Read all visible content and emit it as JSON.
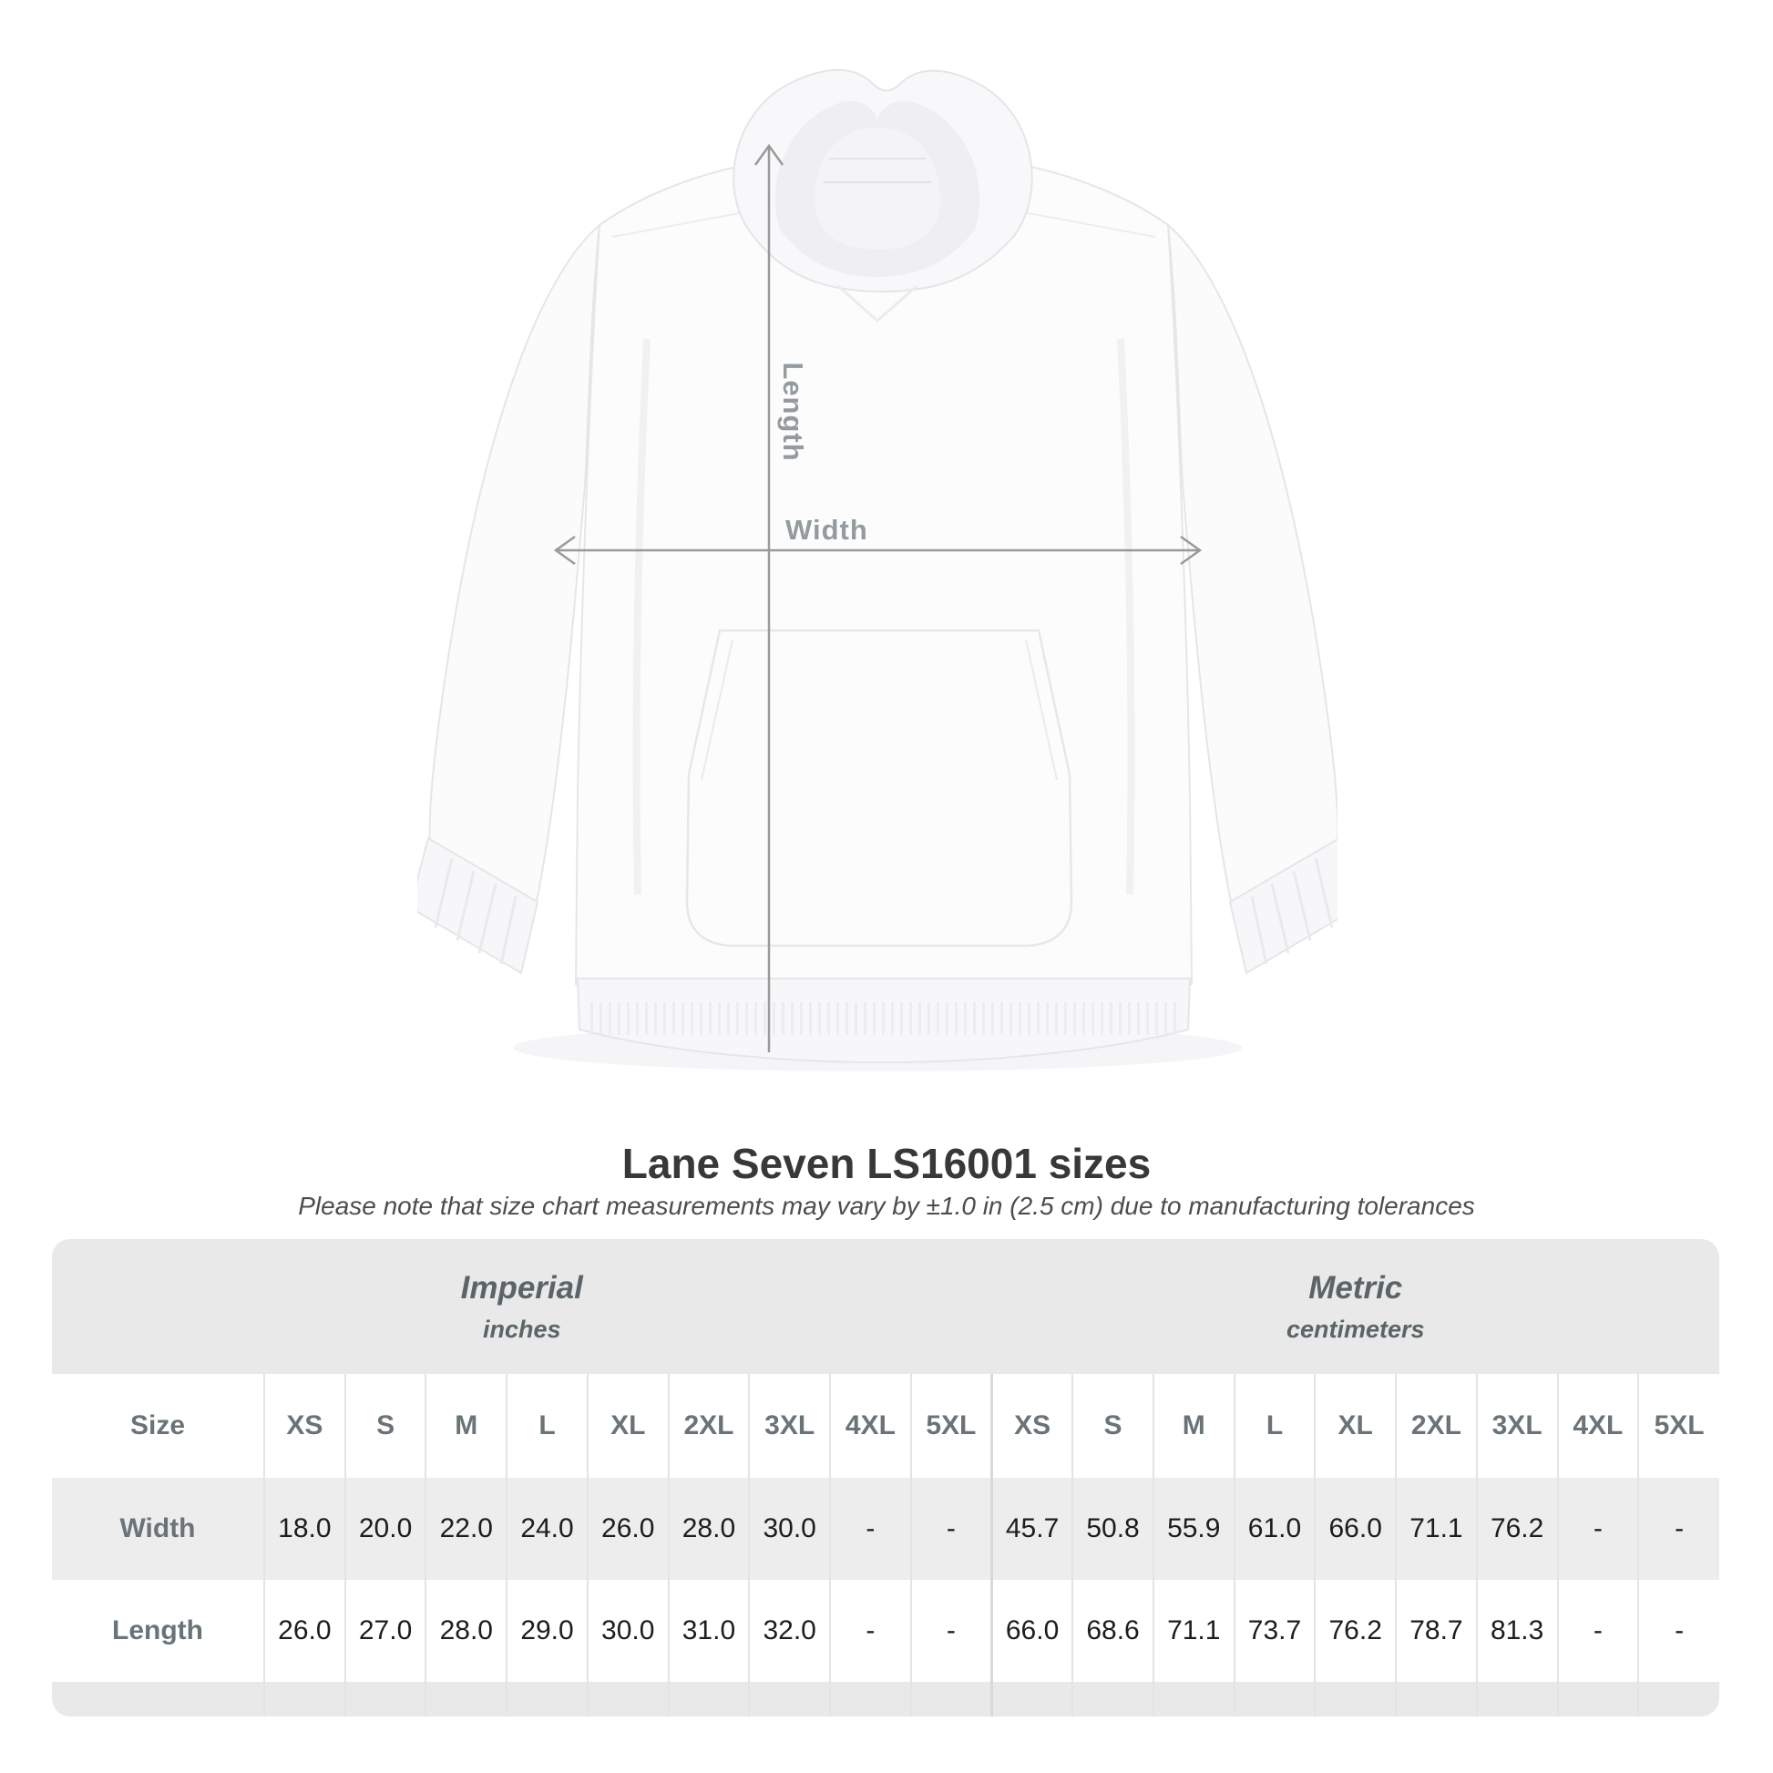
{
  "title": "Lane Seven LS16001 sizes",
  "subtitle": "Please note that size chart measurements may vary by ±1.0 in (2.5 cm) due to manufacturing tolerances",
  "figure": {
    "length_label": "Length",
    "width_label": "Width"
  },
  "size_chart": {
    "unit_groups": [
      {
        "name": "Imperial",
        "unit": "inches"
      },
      {
        "name": "Metric",
        "unit": "centimeters"
      }
    ],
    "size_column_header": "Size",
    "sizes": [
      "XS",
      "S",
      "M",
      "L",
      "XL",
      "2XL",
      "3XL",
      "4XL",
      "5XL"
    ],
    "rows": [
      {
        "label": "Width",
        "imperial": [
          "18.0",
          "20.0",
          "22.0",
          "24.0",
          "26.0",
          "28.0",
          "30.0",
          "-",
          "-"
        ],
        "metric": [
          "45.7",
          "50.8",
          "55.9",
          "61.0",
          "66.0",
          "71.1",
          "76.2",
          "-",
          "-"
        ]
      },
      {
        "label": "Length",
        "imperial": [
          "26.0",
          "27.0",
          "28.0",
          "29.0",
          "30.0",
          "31.0",
          "32.0",
          "-",
          "-"
        ],
        "metric": [
          "66.0",
          "68.6",
          "71.1",
          "73.7",
          "76.2",
          "78.7",
          "81.3",
          "-",
          "-"
        ]
      }
    ]
  },
  "colors": {
    "annotation_gray": "#9a9a9a",
    "label_gray": "#939b9e",
    "header_text": "#6a7478",
    "unit_text": "#5b6568",
    "value_text": "#1d1d1d",
    "band_gray": "#e9e9e9",
    "row_shade": "#ededed",
    "separator": "#e4e4e4"
  },
  "chart_data": {
    "type": "table",
    "title": "Lane Seven LS16001 sizes",
    "note": "Measurements may vary by ±1.0 in (2.5 cm)",
    "unit_groups": [
      "Imperial (inches)",
      "Metric (centimeters)"
    ],
    "columns": [
      "XS",
      "S",
      "M",
      "L",
      "XL",
      "2XL",
      "3XL",
      "4XL",
      "5XL"
    ],
    "rows": [
      {
        "label": "Width",
        "imperial": [
          18.0,
          20.0,
          22.0,
          24.0,
          26.0,
          28.0,
          30.0,
          null,
          null
        ],
        "metric": [
          45.7,
          50.8,
          55.9,
          61.0,
          66.0,
          71.1,
          76.2,
          null,
          null
        ]
      },
      {
        "label": "Length",
        "imperial": [
          26.0,
          27.0,
          28.0,
          29.0,
          30.0,
          31.0,
          32.0,
          null,
          null
        ],
        "metric": [
          66.0,
          68.6,
          71.1,
          73.7,
          76.2,
          78.7,
          81.3,
          null,
          null
        ]
      }
    ]
  }
}
